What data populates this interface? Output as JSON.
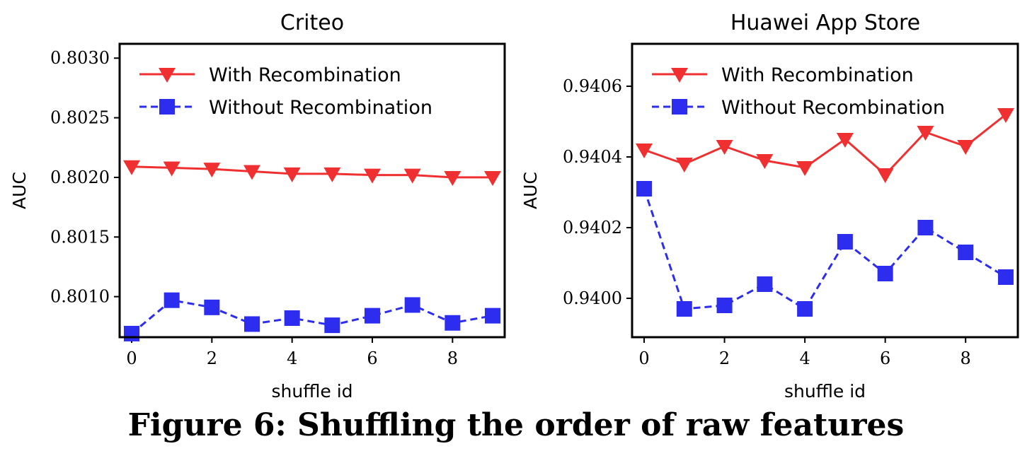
{
  "caption": "Figure 6: Shuffling the order of raw features",
  "chart_data": [
    {
      "type": "line",
      "title": "Criteo",
      "xlabel": "shuffle id",
      "ylabel": "AUC",
      "xlim": [
        -0.3,
        9.3
      ],
      "ylim": [
        0.80066,
        0.80312
      ],
      "xticks": [
        0,
        2,
        4,
        6,
        8
      ],
      "xtick_labels": [
        "0",
        "2",
        "4",
        "6",
        "8"
      ],
      "yticks": [
        0.801,
        0.8015,
        0.802,
        0.8025,
        0.803
      ],
      "ytick_labels": [
        "0.8010",
        "0.8015",
        "0.8020",
        "0.8025",
        "0.8030"
      ],
      "legend_position": "top-left",
      "x": [
        0,
        1,
        2,
        3,
        4,
        5,
        6,
        7,
        8,
        9
      ],
      "series": [
        {
          "name": "With Recombination",
          "color": "#f03030",
          "marker": "triangle-down",
          "style": "solid",
          "values": [
            0.80209,
            0.80208,
            0.80207,
            0.80205,
            0.80203,
            0.80203,
            0.80202,
            0.80202,
            0.802,
            0.802
          ]
        },
        {
          "name": "Without Recombination",
          "color": "#2d2df0",
          "marker": "square",
          "style": "dashed",
          "values": [
            0.80069,
            0.80097,
            0.80091,
            0.80077,
            0.80082,
            0.80076,
            0.80084,
            0.80093,
            0.80078,
            0.80084
          ]
        }
      ]
    },
    {
      "type": "line",
      "title": "Huawei App Store",
      "xlabel": "shuffle id",
      "ylabel": "AUC",
      "xlim": [
        -0.3,
        9.3
      ],
      "ylim": [
        0.93989,
        0.94072
      ],
      "xticks": [
        0,
        2,
        4,
        6,
        8
      ],
      "xtick_labels": [
        "0",
        "2",
        "4",
        "6",
        "8"
      ],
      "yticks": [
        0.94,
        0.9402,
        0.9404,
        0.9406
      ],
      "ytick_labels": [
        "0.9400",
        "0.9402",
        "0.9404",
        "0.9406"
      ],
      "legend_position": "top-left",
      "x": [
        0,
        1,
        2,
        3,
        4,
        5,
        6,
        7,
        8,
        9
      ],
      "series": [
        {
          "name": "With Recombination",
          "color": "#f03030",
          "marker": "triangle-down",
          "style": "solid",
          "values": [
            0.94042,
            0.94038,
            0.94043,
            0.94039,
            0.94037,
            0.94045,
            0.94035,
            0.94047,
            0.94043,
            0.94052
          ]
        },
        {
          "name": "Without Recombination",
          "color": "#2d2df0",
          "marker": "square",
          "style": "dashed",
          "values": [
            0.94031,
            0.93997,
            0.93998,
            0.94004,
            0.93997,
            0.94016,
            0.94007,
            0.9402,
            0.94013,
            0.94006
          ]
        }
      ]
    }
  ]
}
